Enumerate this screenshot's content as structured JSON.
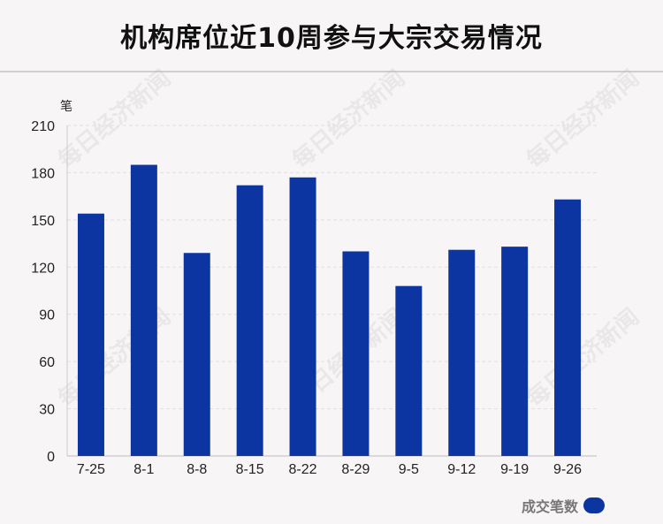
{
  "title": "机构席位近10周参与大宗交易情况",
  "watermark": "每日经济新闻",
  "chart_data": {
    "type": "bar",
    "title": "机构席位近10周参与大宗交易情况",
    "ylabel": "笔",
    "xlabel": "",
    "categories": [
      "7-25",
      "8-1",
      "8-8",
      "8-15",
      "8-22",
      "8-29",
      "9-5",
      "9-12",
      "9-19",
      "9-26"
    ],
    "series": [
      {
        "name": "成交笔数",
        "values": [
          154,
          185,
          129,
          172,
          177,
          130,
          108,
          131,
          133,
          163
        ],
        "color": "#0d35a1"
      }
    ],
    "ylim": [
      0,
      210
    ],
    "yticks": [
      0,
      30,
      60,
      90,
      120,
      150,
      180,
      210
    ],
    "grid": true,
    "legend": "bottom-right"
  }
}
